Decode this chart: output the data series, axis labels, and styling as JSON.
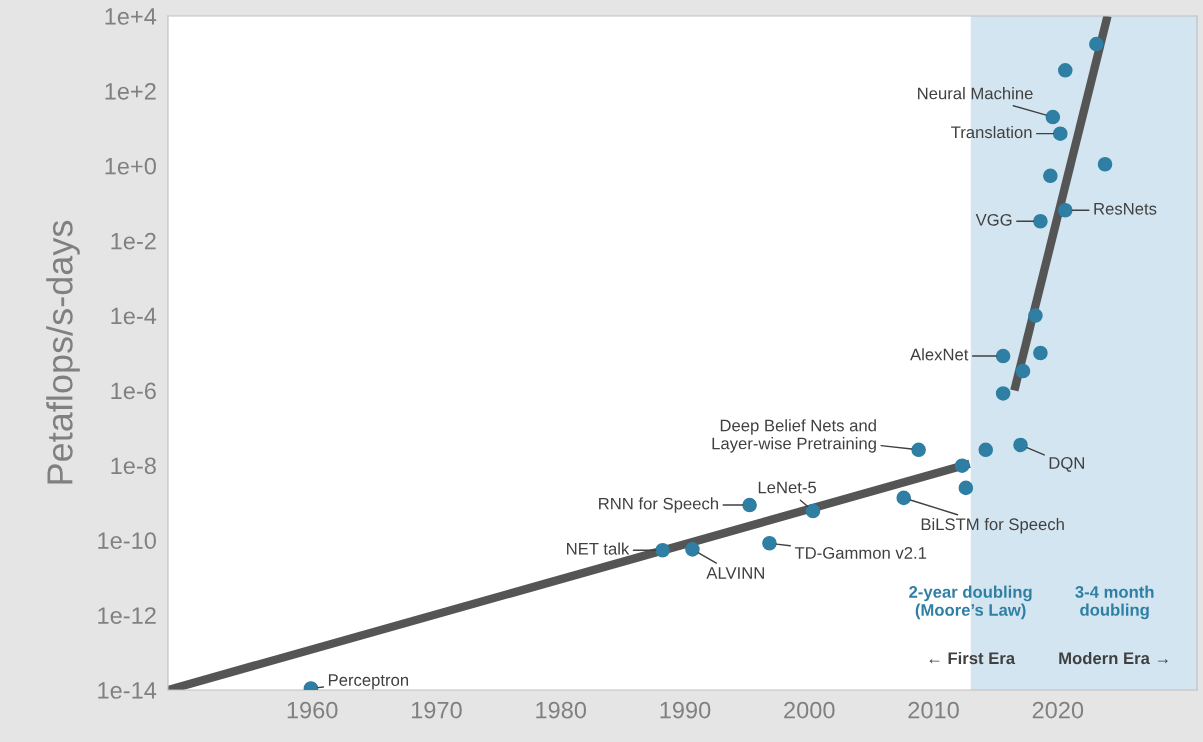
{
  "chart_data": {
    "type": "scatter",
    "ylabel": "Petaflops/s-days",
    "log": "y",
    "grid": false,
    "legend": false,
    "xlim": [
      1948.4,
      2031.2
    ],
    "xticks": [
      1960,
      1970,
      1980,
      1990,
      2000,
      2010,
      2020
    ],
    "ylim": [
      1e-14,
      10000.0
    ],
    "yticks": [
      {
        "value": 1e-14,
        "label": "1e-14"
      },
      {
        "value": 1e-12,
        "label": "1e-12"
      },
      {
        "value": 1e-10,
        "label": "1e-10"
      },
      {
        "value": 1e-08,
        "label": "1e-8"
      },
      {
        "value": 1e-06,
        "label": "1e-6"
      },
      {
        "value": 0.0001,
        "label": "1e-4"
      },
      {
        "value": 0.01,
        "label": "1e-2"
      },
      {
        "value": 1,
        "label": "1e+0"
      },
      {
        "value": 100,
        "label": "1e+2"
      },
      {
        "value": 10000,
        "label": "1e+4"
      }
    ],
    "series": [
      {
        "marker": "circle",
        "color": "#2e7fa3",
        "x": [
          1959.9,
          1988.2,
          1990.6,
          1995.2,
          1996.8,
          2000.3,
          2007.6,
          2008.8,
          2012.3,
          2012.6,
          2014.2,
          2017.0,
          2015.6,
          2015.6,
          2017.2,
          2018.6,
          2018.2,
          2018.6,
          2020.6,
          2019.4,
          2023.8,
          2020.2,
          2019.6,
          2020.6,
          2023.1
        ],
        "values": [
          1.1e-14,
          5.4e-11,
          5.7e-11,
          8.7e-10,
          8.3e-11,
          6e-10,
          1.35e-09,
          2.6e-08,
          9.8e-09,
          2.5e-09,
          2.6e-08,
          3.5e-08,
          8.3e-07,
          8.3e-06,
          3.3e-06,
          1e-05,
          0.0001,
          0.033,
          0.065,
          0.54,
          1.1,
          7.2,
          20,
          355,
          1780
        ]
      },
      {
        "type": "line",
        "color": "#555555",
        "x": [
          1948.4,
          2012.9
        ],
        "values": [
          1e-14,
          1.1e-08
        ]
      },
      {
        "type": "line",
        "color": "#555555",
        "x": [
          2016.5,
          2024.0
        ],
        "values": [
          1e-06,
          10000.0
        ]
      }
    ],
    "bands": [
      {
        "axis": "x",
        "from": 2013.0,
        "to": 2031.2,
        "color": "#d3e5f0"
      }
    ],
    "annotations": [
      {
        "text": "Perceptron",
        "x": 1959.9,
        "y": 1.1e-14
      },
      {
        "text": "NET talk",
        "x": 1988.2,
        "y": 5.4e-11
      },
      {
        "text": "ALVINN",
        "x": 1990.6,
        "y": 5.7e-11
      },
      {
        "text": "RNN for Speech",
        "x": 1995.2,
        "y": 8.7e-10
      },
      {
        "text": "LeNet-5",
        "x": 2000.3,
        "y": 6e-10
      },
      {
        "text": "TD-Gammon v2.1",
        "x": 1996.8,
        "y": 8.3e-11
      },
      {
        "text": "BiLSTM for Speech",
        "x": 2007.6,
        "y": 1.35e-09
      },
      {
        "text": "Deep Belief Nets and\nLayer-wise Pretraining",
        "x": 2008.8,
        "y": 2.6e-08
      },
      {
        "text": "AlexNet",
        "x": 2015.6,
        "y": 8.3e-06
      },
      {
        "text": "DQN",
        "x": 2017.0,
        "y": 3.5e-08
      },
      {
        "text": "VGG",
        "x": 2018.6,
        "y": 0.033
      },
      {
        "text": "ResNets",
        "x": 2020.6,
        "y": 0.065
      },
      {
        "text": "Neural Machine",
        "x": 2019.6,
        "y": 20
      },
      {
        "text": "Translation",
        "x": 2020.2,
        "y": 7.2
      },
      "2-year doubling\n(Moore’s Law)",
      "← First Era",
      "3-4 month\ndoubling",
      "Modern Era →"
    ]
  }
}
